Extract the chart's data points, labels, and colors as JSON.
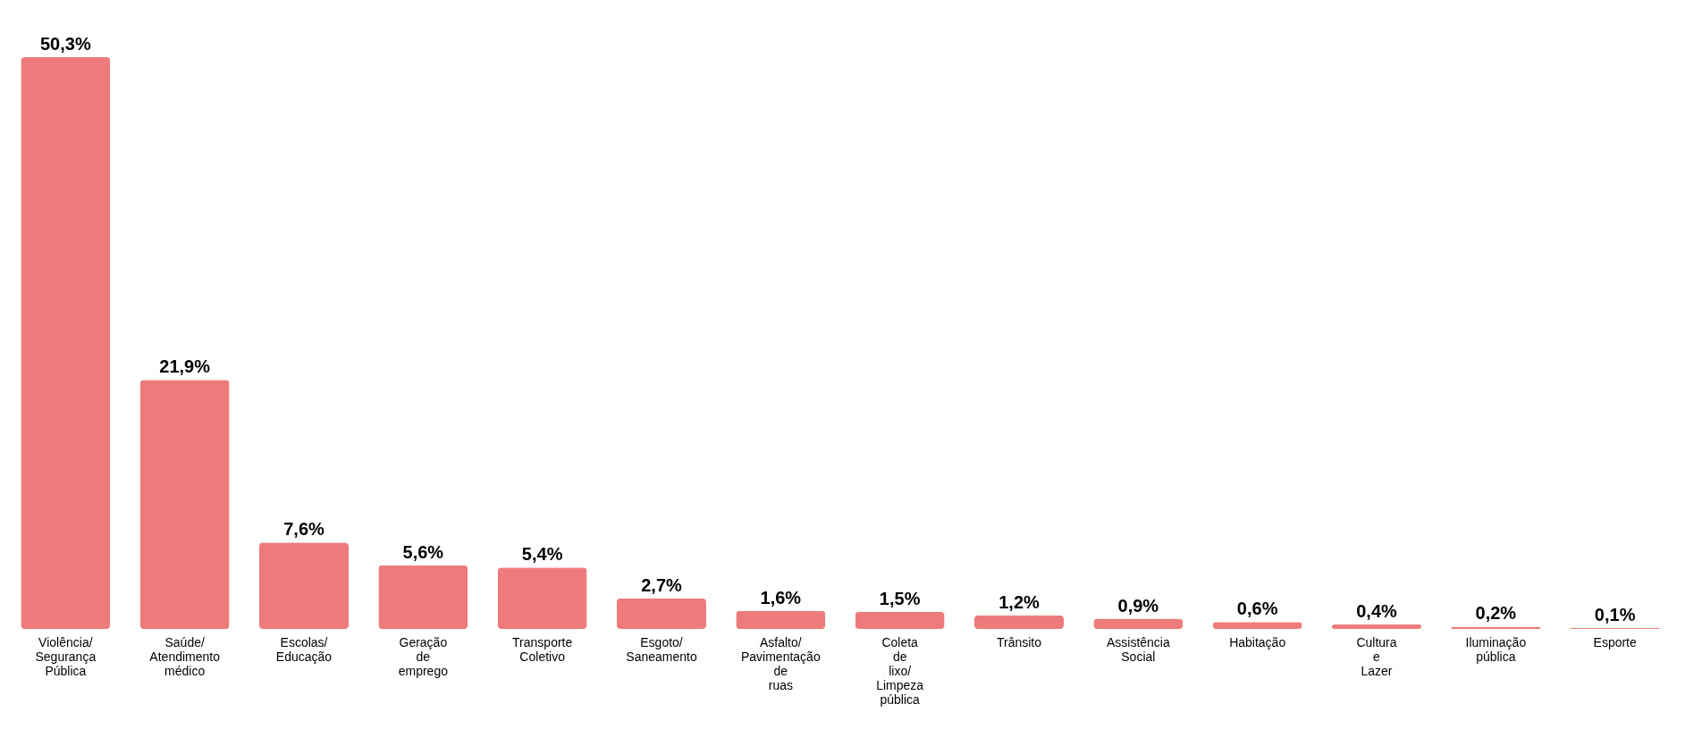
{
  "chart_data": {
    "type": "bar",
    "categories": [
      "Violência/ Segurança Pública",
      "Saúde/ Atendimento médico",
      "Escolas/ Educação",
      "Geração de emprego",
      "Transporte Coletivo",
      "Esgoto/ Saneamento",
      "Asfalto/ Pavimentação de ruas",
      "Coleta de lixo/ Limpeza pública",
      "Trânsito",
      "Assistência Social",
      "Habitação",
      "Cultura e Lazer",
      "Iluminação pública",
      "Esporte"
    ],
    "values": [
      50.3,
      21.9,
      7.6,
      5.6,
      5.4,
      2.7,
      1.6,
      1.5,
      1.2,
      0.9,
      0.6,
      0.4,
      0.2,
      0.1
    ],
    "value_labels": [
      "50,3%",
      "21,9%",
      "7,6%",
      "5,6%",
      "5,4%",
      "2,7%",
      "1,6%",
      "1,5%",
      "1,2%",
      "0,9%",
      "0,6%",
      "0,4%",
      "0,2%",
      "0,1%"
    ],
    "color": "#ee7b7b"
  }
}
